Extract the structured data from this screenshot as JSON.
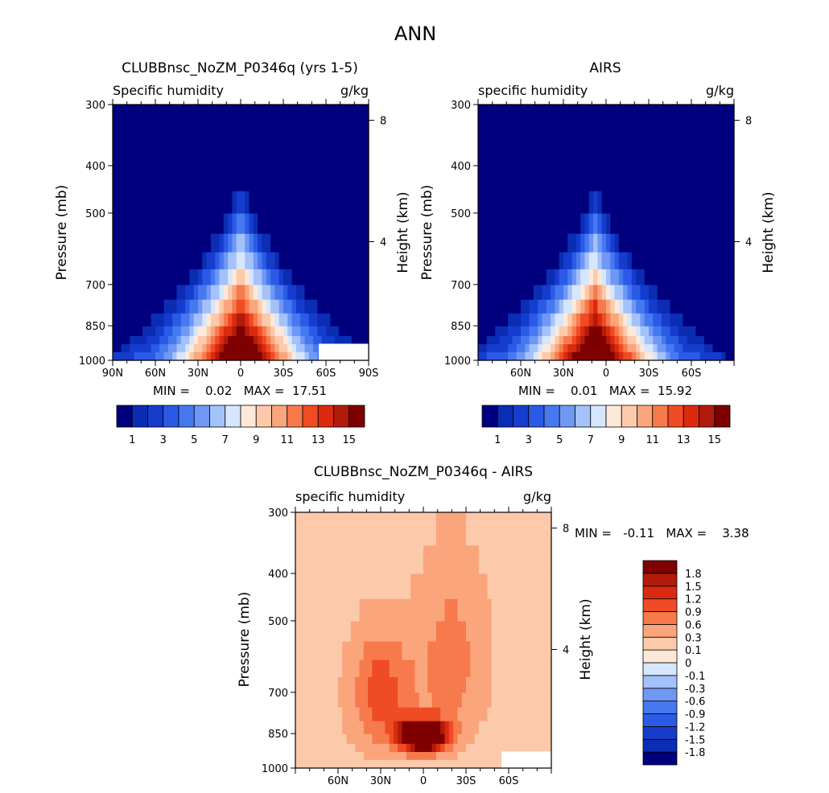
{
  "figure_title": "ANN",
  "chart_data": [
    {
      "id": "model",
      "type": "heatmap",
      "title": "CLUBBnsc_NoZM_P0346q (yrs 1-5)",
      "left_label": "Specific humidity",
      "right_label": "g/kg",
      "ylabel": "Pressure (mb)",
      "y2label": "Height (km)",
      "xlim": [
        90,
        -90
      ],
      "ylim": [
        1000,
        300
      ],
      "x_ticks": [
        {
          "value": 90,
          "label": "90N"
        },
        {
          "value": 60,
          "label": "60N"
        },
        {
          "value": 30,
          "label": "30N"
        },
        {
          "value": 0,
          "label": "0"
        },
        {
          "value": -30,
          "label": "30S"
        },
        {
          "value": -60,
          "label": "60S"
        },
        {
          "value": -90,
          "label": "90S"
        }
      ],
      "y_ticks": [
        300,
        400,
        500,
        700,
        850,
        1000
      ],
      "height_ticks": [
        {
          "value": 8,
          "label": "8"
        },
        {
          "value": 4,
          "label": "4"
        }
      ],
      "contour_levels": [
        1,
        2,
        3,
        4,
        5,
        6,
        7,
        8,
        9,
        10,
        11,
        12,
        13,
        14,
        15
      ],
      "field": {
        "peak_lat": 0,
        "top_pressure": 420,
        "min": 0.02,
        "max": 17.51
      },
      "missing_region": {
        "lat": [
          -55,
          -90
        ],
        "pressure": [
          925,
          1000
        ]
      },
      "stats_line": "MIN =    0.02   MAX =  17.51",
      "colorbar": {
        "colors": [
          "#00007f",
          "#0a2db4",
          "#153ccd",
          "#2a5ae6",
          "#4678f0",
          "#6f98f5",
          "#a4c1fa",
          "#d5e6fd",
          "#fde9d9",
          "#fccaaa",
          "#fba57c",
          "#f77a4c",
          "#ef4b24",
          "#db2a10",
          "#b11b0b",
          "#7f0000"
        ],
        "tick_labels": [
          "1",
          "3",
          "5",
          "7",
          "9",
          "11",
          "13",
          "15"
        ]
      }
    },
    {
      "id": "obs",
      "type": "heatmap",
      "title": "AIRS",
      "left_label": "specific humidity",
      "right_label": "g/kg",
      "ylabel": "Pressure (mb)",
      "y2label": "Height (km)",
      "xlim": [
        90,
        -90
      ],
      "ylim": [
        1000,
        300
      ],
      "x_ticks": [
        {
          "value": 60,
          "label": "60N"
        },
        {
          "value": 30,
          "label": "30N"
        },
        {
          "value": 0,
          "label": "0"
        },
        {
          "value": -30,
          "label": "30S"
        },
        {
          "value": -60,
          "label": "60S"
        }
      ],
      "y_ticks": [
        300,
        400,
        500,
        700,
        850,
        1000
      ],
      "height_ticks": [
        {
          "value": 8,
          "label": "8"
        },
        {
          "value": 4,
          "label": "4"
        }
      ],
      "contour_levels": [
        1,
        2,
        3,
        4,
        5,
        6,
        7,
        8,
        9,
        10,
        11,
        12,
        13,
        14,
        15
      ],
      "field": {
        "peak_lat": 8,
        "top_pressure": 440,
        "min": 0.01,
        "max": 15.92
      },
      "stats_line": "MIN =    0.01   MAX =  15.92",
      "colorbar": {
        "colors": [
          "#00007f",
          "#0a2db4",
          "#153ccd",
          "#2a5ae6",
          "#4678f0",
          "#6f98f5",
          "#a4c1fa",
          "#d5e6fd",
          "#fde9d9",
          "#fccaaa",
          "#fba57c",
          "#f77a4c",
          "#ef4b24",
          "#db2a10",
          "#b11b0b",
          "#7f0000"
        ],
        "tick_labels": [
          "1",
          "3",
          "5",
          "7",
          "9",
          "11",
          "13",
          "15"
        ]
      }
    },
    {
      "id": "diff",
      "type": "heatmap",
      "title": "CLUBBnsc_NoZM_P0346q - AIRS",
      "left_label": "specific humidity",
      "right_label": "g/kg",
      "ylabel": "Pressure (mb)",
      "y2label": "Height (km)",
      "xlim": [
        90,
        -90
      ],
      "ylim": [
        1000,
        300
      ],
      "x_ticks": [
        {
          "value": 60,
          "label": "60N"
        },
        {
          "value": 30,
          "label": "30N"
        },
        {
          "value": 0,
          "label": "0"
        },
        {
          "value": -30,
          "label": "30S"
        },
        {
          "value": -60,
          "label": "60S"
        }
      ],
      "y_ticks": [
        300,
        400,
        500,
        700,
        850,
        1000
      ],
      "height_ticks": [
        {
          "value": 8,
          "label": "8"
        },
        {
          "value": 4,
          "label": "4"
        }
      ],
      "contour_levels": [
        -1.8,
        -1.5,
        -1.2,
        -0.9,
        -0.6,
        -0.3,
        -0.1,
        0,
        0.1,
        0.3,
        0.6,
        0.9,
        1.2,
        1.5,
        1.8
      ],
      "field": {
        "peak_lat": 0,
        "peak_pressure": 850,
        "min": -0.11,
        "max": 3.38
      },
      "missing_region": {
        "lat": [
          -55,
          -90
        ],
        "pressure": [
          925,
          1000
        ]
      },
      "stats_line": "MIN =   -0.11   MAX =    3.38",
      "colorbar": {
        "colors": [
          "#00007f",
          "#0a2db4",
          "#153ccd",
          "#2a5ae6",
          "#4678f0",
          "#6f98f5",
          "#a4c1fa",
          "#d5e6fd",
          "#fde9d9",
          "#fccaaa",
          "#fba57c",
          "#f77a4c",
          "#ef4b24",
          "#db2a10",
          "#b11b0b",
          "#7f0000"
        ],
        "tick_labels": [
          "1.8",
          "1.5",
          "1.2",
          "0.9",
          "0.6",
          "0.3",
          "0.1",
          "0",
          "-0.1",
          "-0.3",
          "-0.6",
          "-0.9",
          "-1.2",
          "-1.5",
          "-1.8"
        ]
      }
    }
  ]
}
